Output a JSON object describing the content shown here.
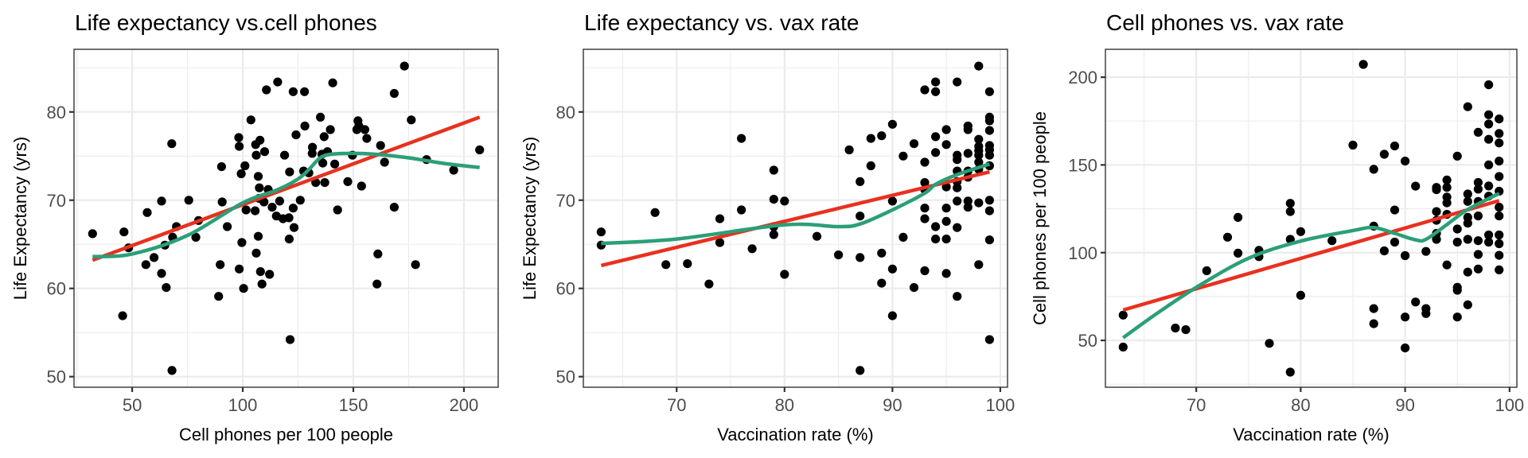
{
  "colors": {
    "linear_fit": "#e8311f",
    "loess_fit": "#2b9f78",
    "points": "#000000"
  },
  "chart_data": [
    {
      "type": "scatter",
      "title": "Life expectancy vs.cell phones",
      "xlabel": "Cell phones per 100 people",
      "ylabel": "Life Expectancy (yrs)",
      "xlim": [
        23.7,
        215.5
      ],
      "ylim": [
        48.8,
        87.1
      ],
      "xticks": [
        50,
        100,
        150,
        200
      ],
      "yticks": [
        50,
        60,
        70,
        80
      ],
      "grid": true,
      "points": [
        [
          32.1,
          66.2
        ],
        [
          46.3,
          66.4
        ],
        [
          48.4,
          64.6
        ],
        [
          45.7,
          56.9
        ],
        [
          56.8,
          68.6
        ],
        [
          56.2,
          62.7
        ],
        [
          59.9,
          63.5
        ],
        [
          63.3,
          69.9
        ],
        [
          63.3,
          61.7
        ],
        [
          65.4,
          60.1
        ],
        [
          64.8,
          64.9
        ],
        [
          67.9,
          76.4
        ],
        [
          68.0,
          50.7
        ],
        [
          70.0,
          67.0
        ],
        [
          68.3,
          65.8
        ],
        [
          75.6,
          70.0
        ],
        [
          78.8,
          65.8
        ],
        [
          80.0,
          67.7
        ],
        [
          90.4,
          73.8
        ],
        [
          90.7,
          69.8
        ],
        [
          93.0,
          67.0
        ],
        [
          89.8,
          62.7
        ],
        [
          89.1,
          59.1
        ],
        [
          98.2,
          77.1
        ],
        [
          98.4,
          76.1
        ],
        [
          99.3,
          73.0
        ],
        [
          101.0,
          73.9
        ],
        [
          99.6,
          65.2
        ],
        [
          98.4,
          62.2
        ],
        [
          100.4,
          60.0
        ],
        [
          103.7,
          79.1
        ],
        [
          101.5,
          68.9
        ],
        [
          105.8,
          76.3
        ],
        [
          107.8,
          76.8
        ],
        [
          106.1,
          75.1
        ],
        [
          107.0,
          72.7
        ],
        [
          107.5,
          71.4
        ],
        [
          109.9,
          75.5
        ],
        [
          105.6,
          68.8
        ],
        [
          107.4,
          70.2
        ],
        [
          109.6,
          69.8
        ],
        [
          107.0,
          65.9
        ],
        [
          106.1,
          64.0
        ],
        [
          108.0,
          61.9
        ],
        [
          108.7,
          60.5
        ],
        [
          112.1,
          61.6
        ],
        [
          110.7,
          82.5
        ],
        [
          111.5,
          71.2
        ],
        [
          113.3,
          69.2
        ],
        [
          115.2,
          68.2
        ],
        [
          115.8,
          83.4
        ],
        [
          116.7,
          69.9
        ],
        [
          118.9,
          75.1
        ],
        [
          118.2,
          67.9
        ],
        [
          120.9,
          68.0
        ],
        [
          121.2,
          73.2
        ],
        [
          121.0,
          65.6
        ],
        [
          121.4,
          54.2
        ],
        [
          122.8,
          82.3
        ],
        [
          122.8,
          69.1
        ],
        [
          123.2,
          66.9
        ],
        [
          124.1,
          77.4
        ],
        [
          126.0,
          70.0
        ],
        [
          127.9,
          82.3
        ],
        [
          128.1,
          78.4
        ],
        [
          127.5,
          73.3
        ],
        [
          129.9,
          73.1
        ],
        [
          131.5,
          76.0
        ],
        [
          131.4,
          75.3
        ],
        [
          133.0,
          72.0
        ],
        [
          135.1,
          79.4
        ],
        [
          135.8,
          75.2
        ],
        [
          136.2,
          74.2
        ],
        [
          137.1,
          72.0
        ],
        [
          136.8,
          77.2
        ],
        [
          138.3,
          75.5
        ],
        [
          139.6,
          78.0
        ],
        [
          140.7,
          83.3
        ],
        [
          141.6,
          74.1
        ],
        [
          142.9,
          68.9
        ],
        [
          147.5,
          72.1
        ],
        [
          149.6,
          75.1
        ],
        [
          152.1,
          79.0
        ],
        [
          151.6,
          78.0
        ],
        [
          152.5,
          78.4
        ],
        [
          155.2,
          78.0
        ],
        [
          156.1,
          77.0
        ],
        [
          153.7,
          71.6
        ],
        [
          162.3,
          76.2
        ],
        [
          164.1,
          74.3
        ],
        [
          161.1,
          63.9
        ],
        [
          160.7,
          60.5
        ],
        [
          168.5,
          82.1
        ],
        [
          168.5,
          69.2
        ],
        [
          173.1,
          85.2
        ],
        [
          176.2,
          79.1
        ],
        [
          178.1,
          62.7
        ],
        [
          183.1,
          74.6
        ],
        [
          195.4,
          73.4
        ],
        [
          207.1,
          75.7
        ]
      ],
      "linear_fit": [
        [
          32.1,
          63.2
        ],
        [
          207.1,
          79.4
        ]
      ],
      "loess_fit": [
        [
          32.1,
          63.6
        ],
        [
          50,
          63.9
        ],
        [
          75,
          66.0
        ],
        [
          100,
          69.7
        ],
        [
          115,
          71.1
        ],
        [
          125,
          72.4
        ],
        [
          130,
          73.5
        ],
        [
          135,
          74.8
        ],
        [
          140,
          75.2
        ],
        [
          150,
          75.3
        ],
        [
          160,
          75.2
        ],
        [
          175,
          74.8
        ],
        [
          190,
          74.2
        ],
        [
          207.1,
          73.7
        ]
      ]
    },
    {
      "type": "scatter",
      "title": "Life expectancy vs. vax rate",
      "xlabel": "Vaccination rate (%)",
      "ylabel": "Life Expectancy (yrs)",
      "xlim": [
        61.35,
        100.67
      ],
      "ylim": [
        48.8,
        87.1
      ],
      "xticks": [
        70,
        80,
        90,
        100
      ],
      "yticks": [
        50,
        60,
        70,
        80
      ],
      "grid": true,
      "points": [
        [
          63,
          66.4
        ],
        [
          63,
          64.9
        ],
        [
          68,
          68.6
        ],
        [
          69,
          62.7
        ],
        [
          71,
          62.8
        ],
        [
          73,
          60.5
        ],
        [
          74,
          67.9
        ],
        [
          74,
          65.2
        ],
        [
          76,
          77.0
        ],
        [
          76,
          68.9
        ],
        [
          77,
          64.5
        ],
        [
          79,
          73.4
        ],
        [
          79,
          70.1
        ],
        [
          79,
          67.0
        ],
        [
          79,
          66.1
        ],
        [
          80,
          69.9
        ],
        [
          80,
          61.6
        ],
        [
          83,
          65.9
        ],
        [
          85,
          63.8
        ],
        [
          86,
          75.7
        ],
        [
          87,
          72.1
        ],
        [
          87,
          68.2
        ],
        [
          87,
          63.5
        ],
        [
          87,
          50.7
        ],
        [
          88,
          77.0
        ],
        [
          88,
          73.9
        ],
        [
          89,
          77.3
        ],
        [
          89,
          64.0
        ],
        [
          89,
          60.6
        ],
        [
          90,
          78.6
        ],
        [
          90,
          69.9
        ],
        [
          90,
          62.2
        ],
        [
          90,
          56.9
        ],
        [
          91,
          75.0
        ],
        [
          91,
          65.8
        ],
        [
          92,
          76.4
        ],
        [
          92,
          60.1
        ],
        [
          93,
          82.5
        ],
        [
          93,
          74.3
        ],
        [
          93,
          72.0
        ],
        [
          93,
          71.2
        ],
        [
          93,
          69.1
        ],
        [
          93,
          67.9
        ],
        [
          93,
          62.0
        ],
        [
          94,
          83.4
        ],
        [
          94,
          82.3
        ],
        [
          94,
          77.2
        ],
        [
          94,
          75.4
        ],
        [
          94,
          67.0
        ],
        [
          94,
          65.6
        ],
        [
          95,
          78.0
        ],
        [
          95,
          76.3
        ],
        [
          95,
          71.5
        ],
        [
          95,
          69.1
        ],
        [
          95,
          67.6
        ],
        [
          95,
          65.6
        ],
        [
          95,
          61.7
        ],
        [
          96,
          83.4
        ],
        [
          96,
          75.1
        ],
        [
          96,
          74.6
        ],
        [
          96,
          73.3
        ],
        [
          96,
          72.1
        ],
        [
          96,
          71.4
        ],
        [
          96,
          69.9
        ],
        [
          96,
          66.9
        ],
        [
          96,
          59.1
        ],
        [
          97,
          78.4
        ],
        [
          97,
          78.0
        ],
        [
          97,
          75.3
        ],
        [
          97,
          73.3
        ],
        [
          97,
          72.6
        ],
        [
          97,
          69.9
        ],
        [
          97,
          69.2
        ],
        [
          98,
          85.2
        ],
        [
          98,
          76.9
        ],
        [
          98,
          76.1
        ],
        [
          98,
          75.6
        ],
        [
          98,
          75.1
        ],
        [
          98,
          74.3
        ],
        [
          98,
          73.5
        ],
        [
          98,
          69.7
        ],
        [
          98,
          62.7
        ],
        [
          99,
          82.3
        ],
        [
          99,
          79.4
        ],
        [
          99,
          79.0
        ],
        [
          99,
          77.9
        ],
        [
          99,
          76.2
        ],
        [
          99,
          75.7
        ],
        [
          99,
          75.1
        ],
        [
          99,
          73.9
        ],
        [
          99,
          70.0
        ],
        [
          99,
          68.8
        ],
        [
          99,
          65.5
        ],
        [
          99,
          54.2
        ]
      ],
      "linear_fit": [
        [
          63,
          62.6
        ],
        [
          99,
          73.2
        ]
      ],
      "loess_fit": [
        [
          63,
          65.1
        ],
        [
          70,
          65.6
        ],
        [
          80,
          67.2
        ],
        [
          85,
          67.0
        ],
        [
          87,
          67.3
        ],
        [
          90,
          68.9
        ],
        [
          93,
          70.8
        ],
        [
          94,
          71.8
        ],
        [
          96,
          72.9
        ],
        [
          99,
          74.1
        ]
      ]
    },
    {
      "type": "scatter",
      "title": "Cell phones vs. vax rate",
      "xlabel": "Vaccination rate (%)",
      "ylabel": "Cell phones per 100 people",
      "xlim": [
        61.3,
        100.7
      ],
      "ylim": [
        23.3,
        215.9
      ],
      "xticks": [
        70,
        80,
        90,
        100
      ],
      "yticks": [
        50,
        100,
        150,
        200
      ],
      "grid": true,
      "points": [
        [
          63,
          64.4
        ],
        [
          63,
          46.2
        ],
        [
          68,
          57.0
        ],
        [
          69,
          56.1
        ],
        [
          71,
          89.7
        ],
        [
          73,
          108.8
        ],
        [
          74,
          120.1
        ],
        [
          74,
          99.7
        ],
        [
          76,
          101.3
        ],
        [
          76,
          97.7
        ],
        [
          77,
          48.3
        ],
        [
          79,
          128.1
        ],
        [
          79,
          123.4
        ],
        [
          79,
          107.6
        ],
        [
          79,
          31.9
        ],
        [
          80,
          112.0
        ],
        [
          80,
          75.7
        ],
        [
          83,
          106.8
        ],
        [
          85,
          161.3
        ],
        [
          86,
          207.3
        ],
        [
          87,
          147.5
        ],
        [
          87,
          115.1
        ],
        [
          87,
          68.1
        ],
        [
          87,
          59.5
        ],
        [
          88,
          101.0
        ],
        [
          88,
          156.1
        ],
        [
          89,
          160.8
        ],
        [
          89,
          124.3
        ],
        [
          89,
          106.0
        ],
        [
          90,
          152.2
        ],
        [
          90,
          98.3
        ],
        [
          90,
          63.3
        ],
        [
          90,
          45.7
        ],
        [
          91,
          137.9
        ],
        [
          91,
          71.9
        ],
        [
          92,
          100.7
        ],
        [
          92,
          68.1
        ],
        [
          92,
          65.3
        ],
        [
          93,
          137.2
        ],
        [
          93,
          135.9
        ],
        [
          93,
          123.4
        ],
        [
          93,
          118.4
        ],
        [
          93,
          111.0
        ],
        [
          93,
          107.6
        ],
        [
          94,
          141.4
        ],
        [
          94,
          137.2
        ],
        [
          94,
          131.7
        ],
        [
          94,
          128.4
        ],
        [
          94,
          121.8
        ],
        [
          94,
          93.0
        ],
        [
          95,
          155.0
        ],
        [
          95,
          113.5
        ],
        [
          95,
          106.0
        ],
        [
          95,
          80.2
        ],
        [
          95,
          78.6
        ],
        [
          95,
          63.3
        ],
        [
          96,
          183.2
        ],
        [
          96,
          133.4
        ],
        [
          96,
          129.2
        ],
        [
          96,
          120.1
        ],
        [
          96,
          116.8
        ],
        [
          96,
          107.6
        ],
        [
          96,
          88.9
        ],
        [
          96,
          70.3
        ],
        [
          97,
          168.6
        ],
        [
          97,
          140.0
        ],
        [
          97,
          136.2
        ],
        [
          97,
          129.2
        ],
        [
          97,
          120.9
        ],
        [
          97,
          106.8
        ],
        [
          97,
          99.0
        ],
        [
          97,
          90.7
        ],
        [
          98,
          195.7
        ],
        [
          98,
          178.6
        ],
        [
          98,
          173.3
        ],
        [
          98,
          164.6
        ],
        [
          98,
          150.0
        ],
        [
          98,
          138.0
        ],
        [
          98,
          132.2
        ],
        [
          98,
          110.1
        ],
        [
          98,
          106.0
        ],
        [
          99,
          176.2
        ],
        [
          99,
          167.9
        ],
        [
          99,
          162.5
        ],
        [
          99,
          152.2
        ],
        [
          99,
          143.4
        ],
        [
          99,
          135.0
        ],
        [
          99,
          125.9
        ],
        [
          99,
          120.9
        ],
        [
          99,
          110.1
        ],
        [
          99,
          105.1
        ],
        [
          99,
          98.5
        ],
        [
          99,
          90.2
        ]
      ],
      "linear_fit": [
        [
          63,
          67.3
        ],
        [
          99,
          129.6
        ]
      ],
      "loess_fit": [
        [
          63,
          51.5
        ],
        [
          66,
          64.4
        ],
        [
          70,
          80.2
        ],
        [
          75,
          96.8
        ],
        [
          80,
          106.6
        ],
        [
          85,
          112.6
        ],
        [
          87,
          114.3
        ],
        [
          89,
          111.0
        ],
        [
          91,
          107.3
        ],
        [
          92,
          107.6
        ],
        [
          94,
          116.0
        ],
        [
          96,
          124.6
        ],
        [
          99,
          133.7
        ]
      ]
    }
  ]
}
